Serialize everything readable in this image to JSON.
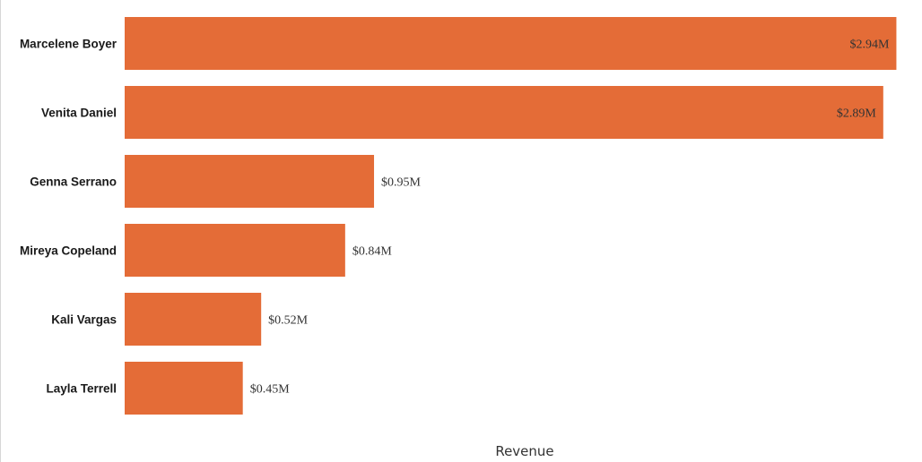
{
  "chart_data": {
    "type": "bar",
    "orientation": "horizontal",
    "categories": [
      "Marcelene Boyer",
      "Venita Daniel",
      "Genna Serrano",
      "Mireya Copeland",
      "Kali Vargas",
      "Layla Terrell"
    ],
    "values": [
      2.94,
      2.89,
      0.95,
      0.84,
      0.52,
      0.45
    ],
    "value_labels": [
      "$2.94M",
      "$2.89M",
      "$0.95M",
      "$0.84M",
      "$0.52M",
      "$0.45M"
    ],
    "xlabel": "Revenue",
    "ylabel": "",
    "xlim": [
      0,
      3.0
    ],
    "grid": false,
    "bar_color": "#E46C37"
  }
}
